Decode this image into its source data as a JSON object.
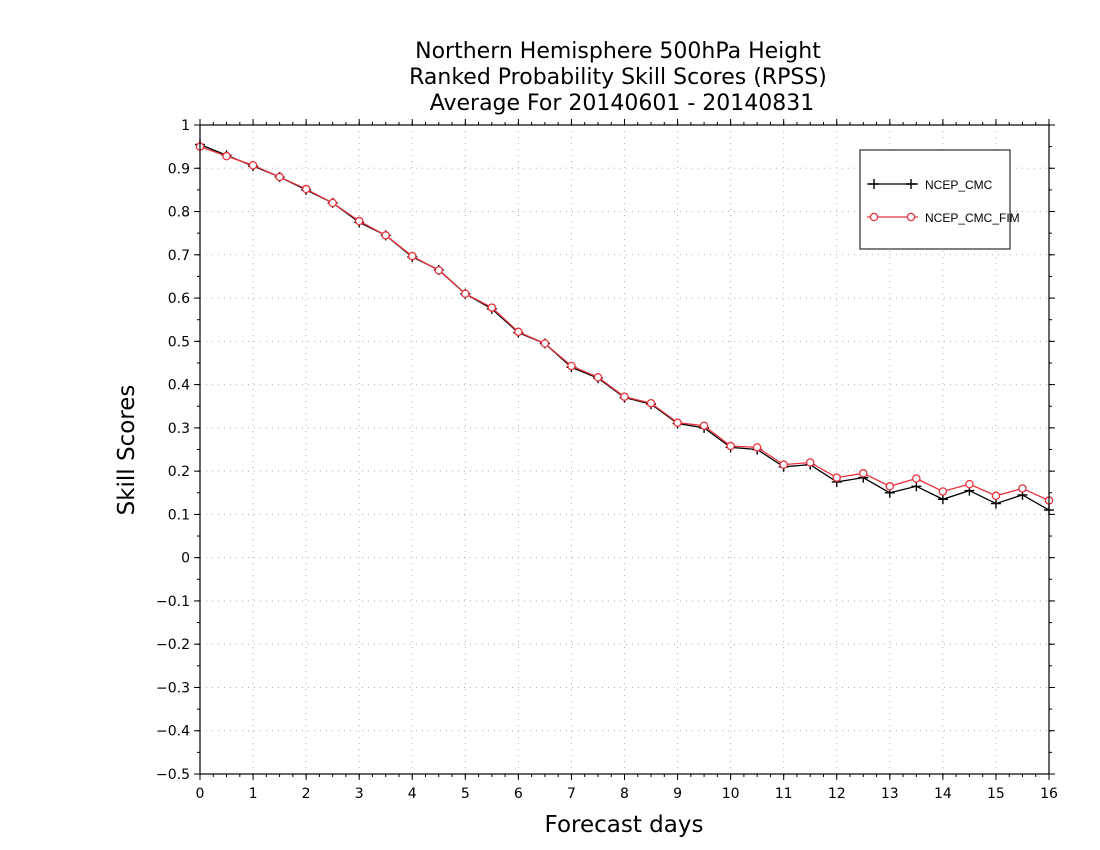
{
  "chart_data": {
    "type": "line",
    "title_lines": [
      "Northern Hemisphere 500hPa Height",
      "Ranked Probability Skill Scores (RPSS)",
      "Average For 20140601 - 20140831"
    ],
    "xlabel": "Forecast days",
    "ylabel": "Skill Scores",
    "xlim": [
      0,
      16
    ],
    "ylim": [
      -0.5,
      1
    ],
    "x_ticks": [
      "0",
      "1",
      "2",
      "3",
      "4",
      "5",
      "6",
      "7",
      "8",
      "9",
      "10",
      "11",
      "12",
      "13",
      "14",
      "15",
      "16"
    ],
    "y_ticks": [
      "-0.5",
      "-0.4",
      "-0.3",
      "-0.2",
      "-0.1",
      "0",
      "0.1",
      "0.2",
      "0.3",
      "0.4",
      "0.5",
      "0.6",
      "0.7",
      "0.8",
      "0.9",
      "1"
    ],
    "grid": true,
    "legend_position": "top-right",
    "x": [
      0,
      0.5,
      1,
      1.5,
      2,
      2.5,
      3,
      3.5,
      4,
      4.5,
      5,
      5.5,
      6,
      6.5,
      7,
      7.5,
      8,
      8.5,
      9,
      9.5,
      10,
      10.5,
      11,
      11.5,
      12,
      12.5,
      13,
      13.5,
      14,
      14.5,
      15,
      15.5,
      16
    ],
    "series": [
      {
        "name": "NCEP_CMC",
        "color": "#000000",
        "marker": "plus",
        "values": [
          0.955,
          0.93,
          0.905,
          0.88,
          0.85,
          0.82,
          0.775,
          0.745,
          0.695,
          0.665,
          0.61,
          0.575,
          0.52,
          0.495,
          0.44,
          0.415,
          0.37,
          0.355,
          0.31,
          0.3,
          0.255,
          0.25,
          0.21,
          0.215,
          0.175,
          0.185,
          0.15,
          0.165,
          0.135,
          0.155,
          0.125,
          0.145,
          0.11
        ]
      },
      {
        "name": "NCEP_CMC_FIM",
        "color": "#e8333d",
        "marker": "circle",
        "values": [
          0.95,
          0.928,
          0.907,
          0.88,
          0.852,
          0.82,
          0.778,
          0.745,
          0.697,
          0.664,
          0.61,
          0.578,
          0.522,
          0.495,
          0.443,
          0.417,
          0.372,
          0.357,
          0.312,
          0.305,
          0.258,
          0.255,
          0.215,
          0.22,
          0.185,
          0.195,
          0.165,
          0.183,
          0.153,
          0.17,
          0.143,
          0.16,
          0.132
        ]
      }
    ]
  }
}
